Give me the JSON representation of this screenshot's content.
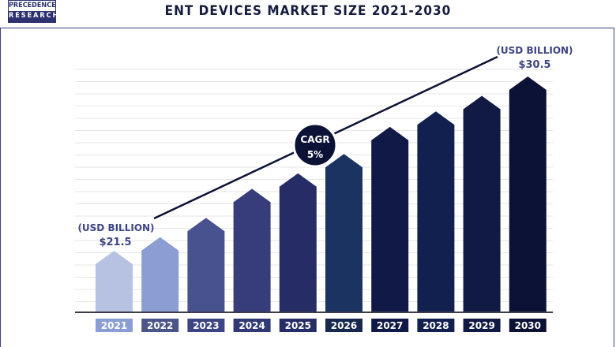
{
  "logo": {
    "line1": "PRECEDENCE",
    "line2": "RESEARCH"
  },
  "title": "ENT DEVICES MARKET SIZE 2021-2030",
  "chart_data": {
    "type": "bar",
    "title": "ENT DEVICES MARKET SIZE 2021-2030",
    "categories": [
      "2021",
      "2022",
      "2023",
      "2024",
      "2025",
      "2026",
      "2027",
      "2028",
      "2029",
      "2030"
    ],
    "values": [
      21.5,
      22.2,
      23.2,
      24.7,
      25.5,
      26.5,
      27.9,
      28.7,
      29.5,
      30.5
    ],
    "unit": "USD BILLION",
    "annotations": {
      "start_unit": "(USD BILLION)",
      "start_value": "$21.5",
      "end_unit": "(USD BILLION)",
      "end_value": "$30.5",
      "cagr_label": "CAGR",
      "cagr_value": "5%"
    },
    "colors": [
      "#b7c1e2",
      "#8a9ed4",
      "#48528f",
      "#363d7a",
      "#262c66",
      "#1b3360",
      "#111a46",
      "#122050",
      "#111a42",
      "#0c1235"
    ],
    "label_colors": [
      "#8a9ed4",
      "#4a5588",
      "#3d4585",
      "#323a75",
      "#262c66",
      "#17284f",
      "#111a46",
      "#122050",
      "#111a42",
      "#0c1235"
    ],
    "grid": true
  }
}
